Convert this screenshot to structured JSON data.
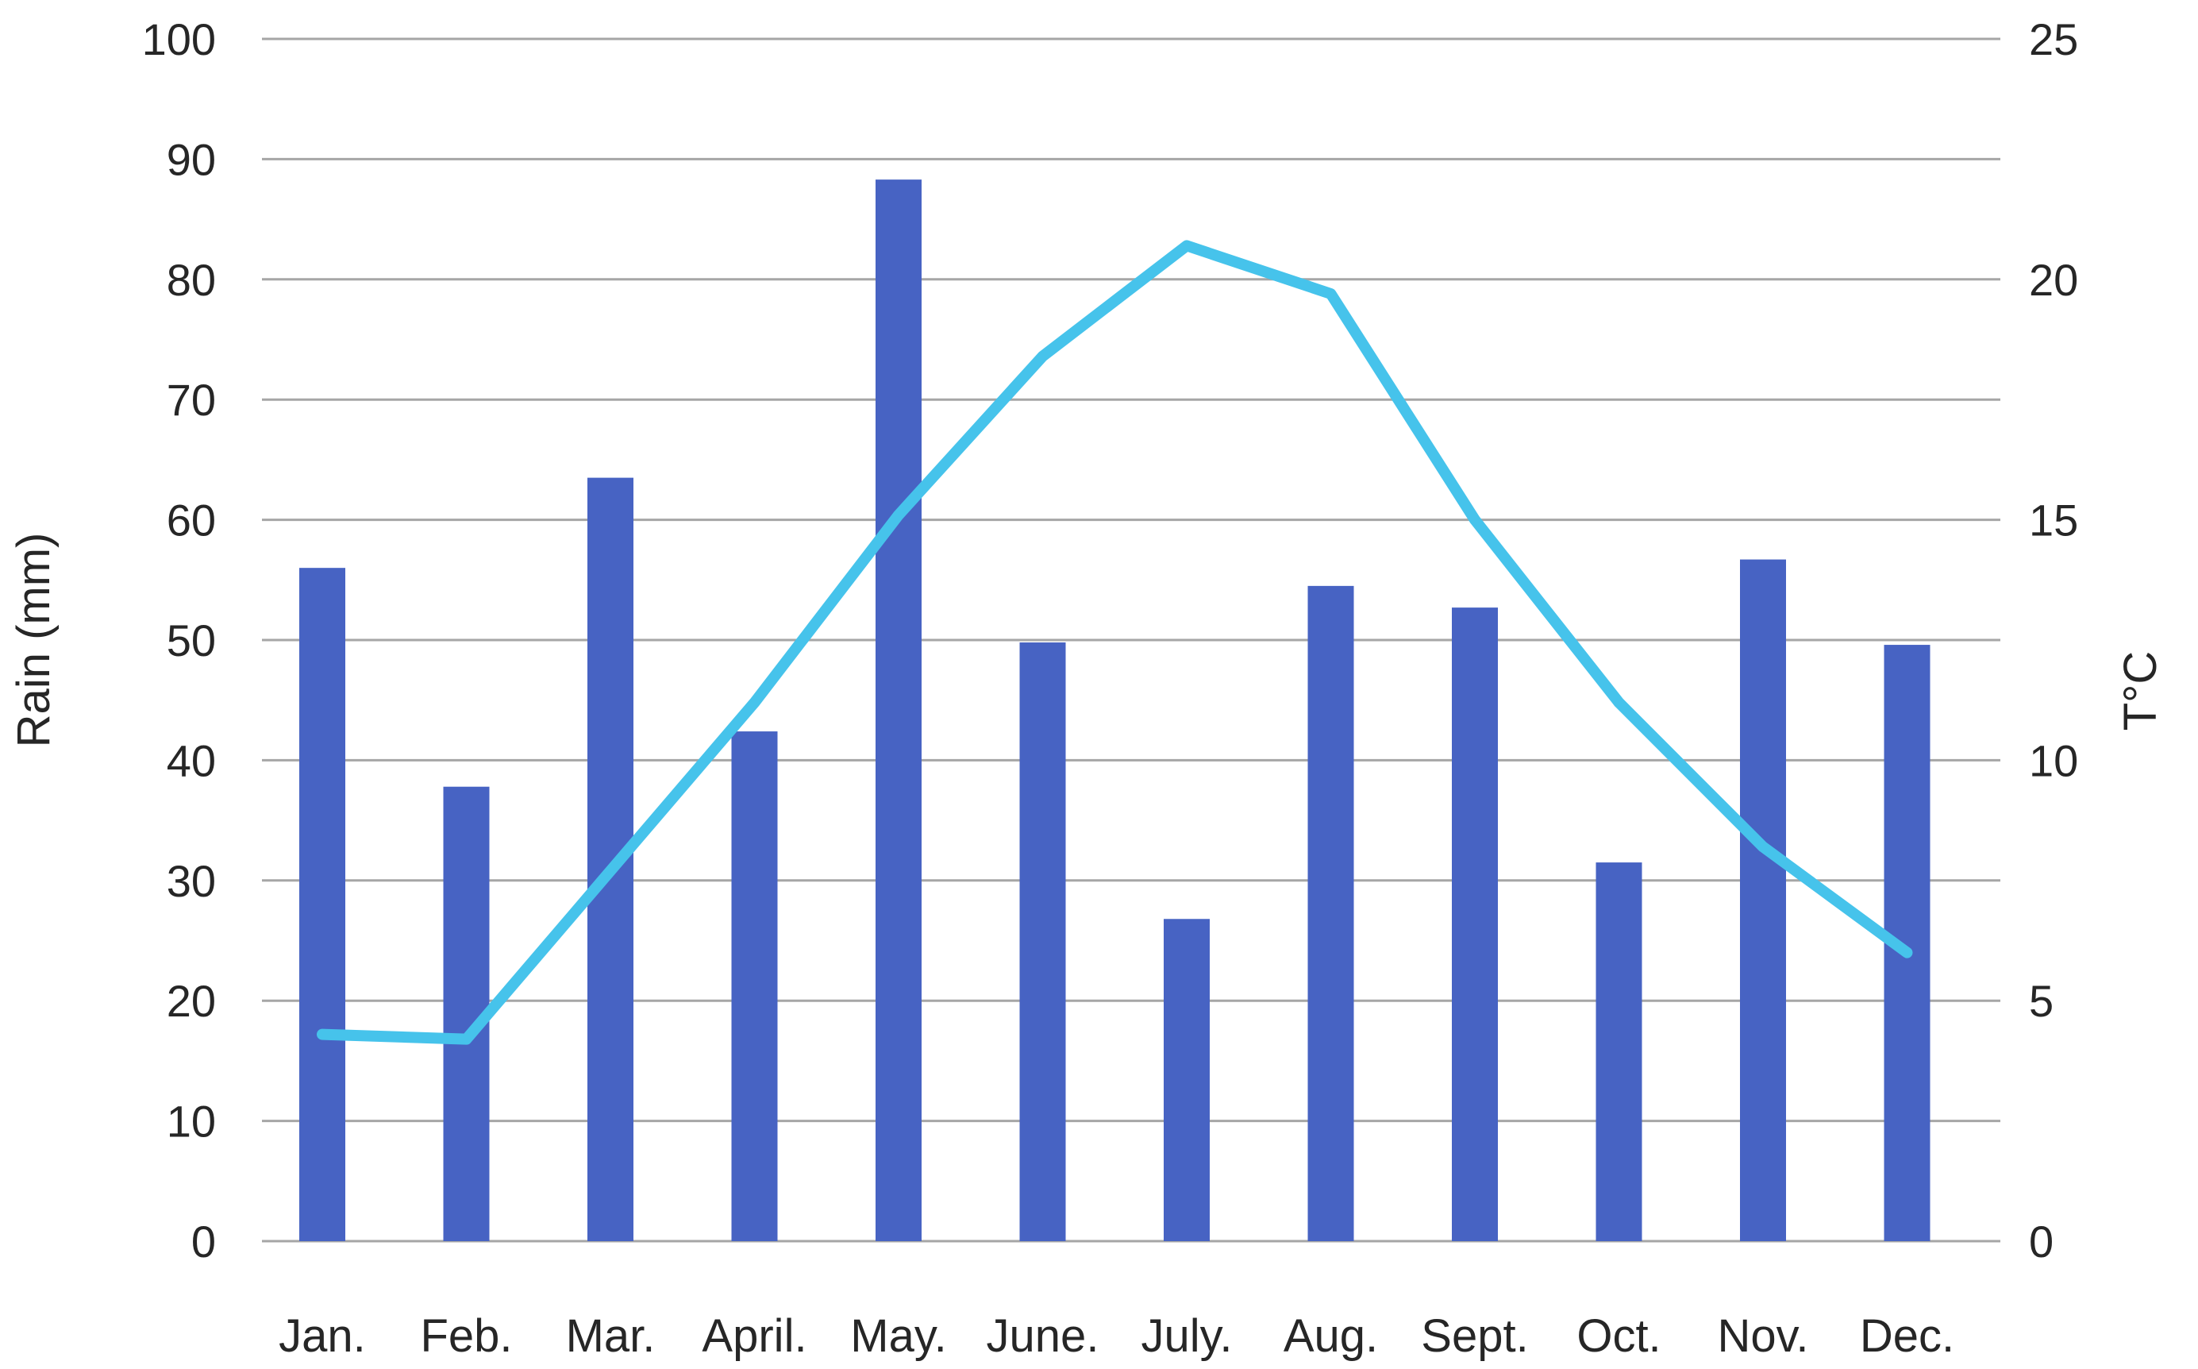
{
  "chart_data": {
    "type": "bar",
    "subtype": "combo-bar-line",
    "title": "",
    "categories": [
      "Jan.",
      "Feb.",
      "Mar.",
      "April.",
      "May.",
      "June.",
      "July.",
      "Aug.",
      "Sept.",
      "Oct.",
      "Nov.",
      "Dec."
    ],
    "series": [
      {
        "name": "Rain (mm)",
        "type": "bar",
        "axis": "left",
        "color": "#4763C3",
        "values": [
          56.0,
          37.8,
          63.5,
          42.4,
          88.3,
          49.8,
          26.8,
          54.5,
          52.7,
          31.5,
          56.7,
          49.6
        ]
      },
      {
        "name": "T°C",
        "type": "line",
        "axis": "right",
        "color": "#46C3EB",
        "values": [
          4.3,
          4.2,
          7.7,
          11.2,
          15.1,
          18.4,
          20.7,
          19.7,
          15.0,
          11.2,
          8.2,
          6.0
        ]
      }
    ],
    "left_axis": {
      "label": "Rain (mm)",
      "min": 0,
      "max": 100,
      "tick_step": 10,
      "ticks": [
        0,
        10,
        20,
        30,
        40,
        50,
        60,
        70,
        80,
        90,
        100
      ]
    },
    "right_axis": {
      "label": "T°C",
      "min": 0,
      "max": 25,
      "tick_step": 5,
      "ticks": [
        0,
        5,
        10,
        15,
        20,
        25
      ]
    },
    "grid": true,
    "legend": "none",
    "gridline_color": "#A6A6A6",
    "text_color": "#262626",
    "background_color": "#FFFFFF"
  }
}
